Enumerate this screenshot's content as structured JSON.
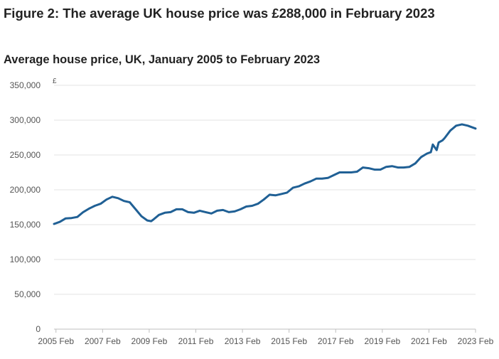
{
  "figure": {
    "title": "Figure 2: The average UK house price was £288,000 in February 2023",
    "subtitle": "Average house price, UK, January 2005 to February 2023"
  },
  "colors": {
    "line": "#206095",
    "grid": "#e3e3e3",
    "axis": "#bfbfbf",
    "text": "#222222"
  },
  "chart_data": {
    "type": "line",
    "title": "Average house price, UK, January 2005 to February 2023",
    "ylabel": "£",
    "xlabel": "",
    "ylim": [
      0,
      350000
    ],
    "yticks": [
      0,
      50000,
      100000,
      150000,
      200000,
      250000,
      300000,
      350000
    ],
    "ytick_labels": [
      "0",
      "50,000",
      "100,000",
      "150,000",
      "200,000",
      "250,000",
      "300,000",
      "350,000"
    ],
    "xlim": [
      "2005-01",
      "2023-02"
    ],
    "xticks": [
      "2005-02",
      "2007-02",
      "2009-02",
      "2011-02",
      "2013-02",
      "2015-02",
      "2017-02",
      "2019-02",
      "2021-02",
      "2023-02"
    ],
    "xtick_labels": [
      "2005 Feb",
      "2007 Feb",
      "2009 Feb",
      "2011 Feb",
      "2013 Feb",
      "2015 Feb",
      "2017 Feb",
      "2019 Feb",
      "2021 Feb",
      "2023 Feb"
    ],
    "grid": true,
    "series": [
      {
        "x": [
          "2005-01",
          "2005-04",
          "2005-07",
          "2005-10",
          "2006-01",
          "2006-04",
          "2006-07",
          "2006-10",
          "2007-01",
          "2007-04",
          "2007-07",
          "2007-10",
          "2008-01",
          "2008-04",
          "2008-07",
          "2008-10",
          "2009-01",
          "2009-03",
          "2009-04",
          "2009-07",
          "2009-10",
          "2010-01",
          "2010-04",
          "2010-07",
          "2010-10",
          "2011-01",
          "2011-04",
          "2011-07",
          "2011-10",
          "2012-01",
          "2012-04",
          "2012-07",
          "2012-10",
          "2013-01",
          "2013-04",
          "2013-07",
          "2013-10",
          "2014-01",
          "2014-04",
          "2014-07",
          "2014-10",
          "2015-01",
          "2015-04",
          "2015-07",
          "2015-10",
          "2016-01",
          "2016-04",
          "2016-07",
          "2016-10",
          "2017-01",
          "2017-04",
          "2017-07",
          "2017-10",
          "2018-01",
          "2018-04",
          "2018-07",
          "2018-10",
          "2019-01",
          "2019-04",
          "2019-07",
          "2019-10",
          "2020-01",
          "2020-04",
          "2020-07",
          "2020-10",
          "2021-01",
          "2021-03",
          "2021-04",
          "2021-06",
          "2021-07",
          "2021-09",
          "2021-10",
          "2022-01",
          "2022-04",
          "2022-07",
          "2022-10",
          "2022-12",
          "2023-02"
        ],
        "values": [
          151000,
          154000,
          159000,
          159500,
          161000,
          168000,
          173000,
          177000,
          180000,
          186000,
          190000,
          188000,
          184000,
          182000,
          172000,
          162000,
          156000,
          155000,
          157000,
          164000,
          167000,
          168000,
          172000,
          172000,
          168000,
          167000,
          170000,
          168000,
          166000,
          170000,
          171000,
          168000,
          169000,
          172000,
          176000,
          177000,
          180000,
          186000,
          193000,
          192000,
          194000,
          196000,
          203000,
          205000,
          209000,
          212000,
          216000,
          216000,
          217000,
          221000,
          225000,
          225000,
          225000,
          226000,
          232000,
          231000,
          229000,
          229000,
          233000,
          234000,
          232000,
          232000,
          233000,
          238000,
          247000,
          252000,
          254000,
          265000,
          257000,
          268000,
          271000,
          274000,
          285000,
          292000,
          294000,
          292000,
          290000,
          288000
        ]
      }
    ]
  }
}
